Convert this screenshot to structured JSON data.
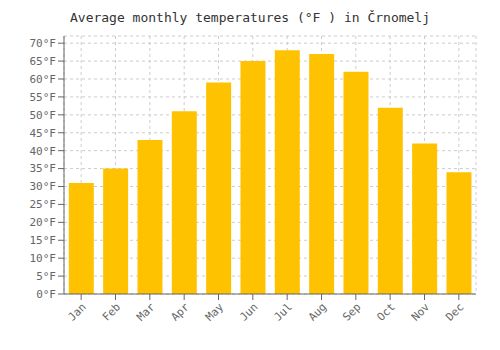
{
  "chart_data": {
    "type": "bar",
    "title": "Average monthly temperatures (°F ) in Črnomelj",
    "categories": [
      "Jan",
      "Feb",
      "Mar",
      "Apr",
      "May",
      "Jun",
      "Jul",
      "Aug",
      "Sep",
      "Oct",
      "Nov",
      "Dec"
    ],
    "values": [
      31,
      35,
      43,
      51,
      59,
      65,
      68,
      67,
      62,
      52,
      42,
      34
    ],
    "color": "#FFC200",
    "ylim": [
      0,
      72
    ],
    "yticks": [
      {
        "value": 0,
        "label": "0°F"
      },
      {
        "value": 5,
        "label": "5°F"
      },
      {
        "value": 10,
        "label": "10°F"
      },
      {
        "value": 15,
        "label": "15°F"
      },
      {
        "value": 20,
        "label": "20°F"
      },
      {
        "value": 25,
        "label": "25°F"
      },
      {
        "value": 30,
        "label": "30°F"
      },
      {
        "value": 35,
        "label": "35°F"
      },
      {
        "value": 40,
        "label": "40°F"
      },
      {
        "value": 45,
        "label": "45°F"
      },
      {
        "value": 50,
        "label": "50°F"
      },
      {
        "value": 55,
        "label": "55°F"
      },
      {
        "value": 60,
        "label": "60°F"
      },
      {
        "value": 65,
        "label": "65°F"
      },
      {
        "value": 70,
        "label": "70°F"
      }
    ],
    "grid": true
  }
}
